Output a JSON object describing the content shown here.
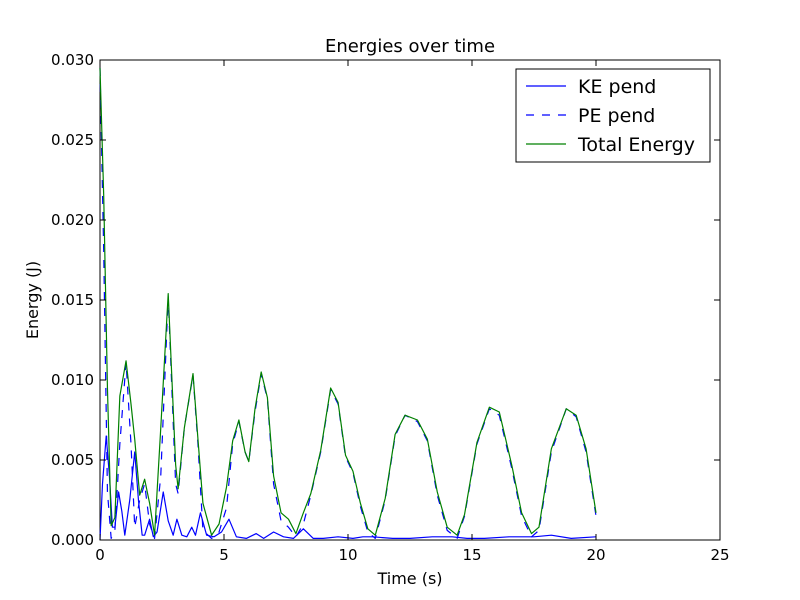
{
  "chart_data": {
    "type": "line",
    "title": "Energies over time",
    "xlabel": "Time (s)",
    "ylabel": "Energy (J)",
    "xlim": [
      0,
      25
    ],
    "ylim": [
      0,
      0.03
    ],
    "x_ticks": [
      0,
      5,
      10,
      15,
      20,
      25
    ],
    "x_tick_labels": [
      "0",
      "5",
      "10",
      "15",
      "20",
      "25"
    ],
    "y_ticks": [
      0,
      0.005,
      0.01,
      0.015,
      0.02,
      0.025,
      0.03
    ],
    "y_tick_labels": [
      "0.000",
      "0.005",
      "0.010",
      "0.015",
      "0.020",
      "0.025",
      "0.030"
    ],
    "grid": false,
    "legend": "top-right",
    "series": [
      {
        "name": "KE pend",
        "color": "#0000ff",
        "style": "solid",
        "points": [
          [
            0,
            0
          ],
          [
            0.1,
            0.0035
          ],
          [
            0.25,
            0.0065
          ],
          [
            0.38,
            0.004
          ],
          [
            0.5,
            0.0008
          ],
          [
            0.6,
            0.0008
          ],
          [
            0.75,
            0.003
          ],
          [
            0.88,
            0.0018
          ],
          [
            1.0,
            0.0003
          ],
          [
            1.2,
            0.0025
          ],
          [
            1.4,
            0.0055
          ],
          [
            1.55,
            0.0025
          ],
          [
            1.7,
            0.0003
          ],
          [
            1.8,
            0.0003
          ],
          [
            2.0,
            0.0013
          ],
          [
            2.15,
            0.0002
          ],
          [
            2.3,
            0.0005
          ],
          [
            2.55,
            0.003
          ],
          [
            2.75,
            0.0012
          ],
          [
            2.95,
            0.0003
          ],
          [
            3.1,
            0.0013
          ],
          [
            3.3,
            0.0003
          ],
          [
            3.5,
            0.0002
          ],
          [
            3.7,
            0.0008
          ],
          [
            3.85,
            0.0003
          ],
          [
            4.05,
            0.0017
          ],
          [
            4.3,
            0.0003
          ],
          [
            4.6,
            0.0002
          ],
          [
            4.9,
            0.0005
          ],
          [
            5.2,
            0.0013
          ],
          [
            5.5,
            0.0002
          ],
          [
            5.9,
            0.0001
          ],
          [
            6.3,
            0.0004
          ],
          [
            6.6,
            0.0001
          ],
          [
            7.0,
            0.0005
          ],
          [
            7.4,
            0.0002
          ],
          [
            7.8,
            0.0001
          ],
          [
            8.2,
            0.0007
          ],
          [
            8.6,
            0.0001
          ],
          [
            9.0,
            0.0001
          ],
          [
            9.6,
            0.0002
          ],
          [
            10.2,
            0.0001
          ],
          [
            10.6,
            0.0002
          ],
          [
            11.0,
            0.0002
          ],
          [
            11.8,
            0.0001
          ],
          [
            12.5,
            0.0001
          ],
          [
            13.4,
            0.0002
          ],
          [
            14.2,
            0.0002
          ],
          [
            14.8,
            0.0001
          ],
          [
            15.5,
            0.0001
          ],
          [
            16.5,
            0.0002
          ],
          [
            17.5,
            0.0002
          ],
          [
            18.2,
            0.0003
          ],
          [
            19.0,
            0.0001
          ],
          [
            20,
            0.0002
          ]
        ]
      },
      {
        "name": "PE pend",
        "color": "#0000ff",
        "style": "dashed",
        "points": [
          [
            0,
            0.0295
          ],
          [
            0.15,
            0.018
          ],
          [
            0.3,
            0.003
          ],
          [
            0.45,
            0.0001
          ],
          [
            0.6,
            0.0006
          ],
          [
            0.8,
            0.006
          ],
          [
            1.05,
            0.0111
          ],
          [
            1.25,
            0.006
          ],
          [
            1.4,
            0.0008
          ],
          [
            1.6,
            0.0025
          ],
          [
            1.8,
            0.0035
          ],
          [
            2.0,
            0.001
          ],
          [
            2.2,
            0.0001
          ],
          [
            2.45,
            0.004
          ],
          [
            2.75,
            0.0152
          ],
          [
            3.05,
            0.0035
          ],
          [
            3.15,
            0.0029
          ],
          [
            3.4,
            0.007
          ],
          [
            3.75,
            0.0103
          ],
          [
            3.95,
            0.006
          ],
          [
            4.15,
            0.0006
          ],
          [
            4.5,
            0.0001
          ],
          [
            4.8,
            0.0005
          ],
          [
            5.1,
            0.002
          ],
          [
            5.35,
            0.006
          ],
          [
            5.6,
            0.0074
          ],
          [
            5.85,
            0.0055
          ],
          [
            6.0,
            0.0049
          ],
          [
            6.25,
            0.008
          ],
          [
            6.5,
            0.0104
          ],
          [
            6.75,
            0.0088
          ],
          [
            7.0,
            0.0035
          ],
          [
            7.3,
            0.0012
          ],
          [
            7.6,
            0.0008
          ],
          [
            7.9,
            0.0002
          ],
          [
            8.2,
            0.001
          ],
          [
            8.5,
            0.0028
          ],
          [
            8.9,
            0.0055
          ],
          [
            9.3,
            0.0094
          ],
          [
            9.6,
            0.0085
          ],
          [
            9.9,
            0.0052
          ],
          [
            10.2,
            0.0042
          ],
          [
            10.5,
            0.0021
          ],
          [
            10.8,
            0.0005
          ],
          [
            11.1,
            0.0001
          ],
          [
            11.5,
            0.0025
          ],
          [
            11.9,
            0.0065
          ],
          [
            12.3,
            0.0078
          ],
          [
            12.8,
            0.0074
          ],
          [
            13.2,
            0.0062
          ],
          [
            13.6,
            0.0028
          ],
          [
            14.0,
            0.0006
          ],
          [
            14.4,
            0.0001
          ],
          [
            14.7,
            0.0015
          ],
          [
            15.2,
            0.006
          ],
          [
            15.7,
            0.0082
          ],
          [
            16.1,
            0.0078
          ],
          [
            16.6,
            0.0045
          ],
          [
            17.0,
            0.0015
          ],
          [
            17.4,
            0.0002
          ],
          [
            17.7,
            0.0006
          ],
          [
            18.2,
            0.0055
          ],
          [
            18.8,
            0.0082
          ],
          [
            19.2,
            0.0077
          ],
          [
            19.6,
            0.0055
          ],
          [
            20,
            0.0015
          ]
        ]
      },
      {
        "name": "Total Energy",
        "color": "#008000",
        "style": "solid",
        "points": [
          [
            0,
            0.0295
          ],
          [
            0.15,
            0.0215
          ],
          [
            0.3,
            0.0095
          ],
          [
            0.45,
            0.0009
          ],
          [
            0.6,
            0.0014
          ],
          [
            0.8,
            0.009
          ],
          [
            1.05,
            0.0112
          ],
          [
            1.25,
            0.0085
          ],
          [
            1.4,
            0.0063
          ],
          [
            1.6,
            0.0028
          ],
          [
            1.8,
            0.0038
          ],
          [
            2.0,
            0.0023
          ],
          [
            2.2,
            0.0003
          ],
          [
            2.45,
            0.007
          ],
          [
            2.75,
            0.0154
          ],
          [
            3.05,
            0.0047
          ],
          [
            3.15,
            0.0032
          ],
          [
            3.4,
            0.007
          ],
          [
            3.75,
            0.0104
          ],
          [
            3.95,
            0.0063
          ],
          [
            4.15,
            0.0023
          ],
          [
            4.5,
            0.0003
          ],
          [
            4.8,
            0.001
          ],
          [
            5.1,
            0.0033
          ],
          [
            5.35,
            0.0062
          ],
          [
            5.6,
            0.0075
          ],
          [
            5.85,
            0.0055
          ],
          [
            6.0,
            0.0049
          ],
          [
            6.25,
            0.0082
          ],
          [
            6.5,
            0.0105
          ],
          [
            6.75,
            0.0089
          ],
          [
            7.0,
            0.004
          ],
          [
            7.3,
            0.0017
          ],
          [
            7.6,
            0.0013
          ],
          [
            7.9,
            0.0004
          ],
          [
            8.2,
            0.0017
          ],
          [
            8.5,
            0.0029
          ],
          [
            8.9,
            0.0056
          ],
          [
            9.3,
            0.0095
          ],
          [
            9.6,
            0.0086
          ],
          [
            9.9,
            0.0053
          ],
          [
            10.2,
            0.0043
          ],
          [
            10.5,
            0.0023
          ],
          [
            10.8,
            0.0007
          ],
          [
            11.1,
            0.0003
          ],
          [
            11.5,
            0.0026
          ],
          [
            11.9,
            0.0066
          ],
          [
            12.3,
            0.0078
          ],
          [
            12.8,
            0.0075
          ],
          [
            13.2,
            0.0063
          ],
          [
            13.6,
            0.003
          ],
          [
            14.0,
            0.0008
          ],
          [
            14.4,
            0.0003
          ],
          [
            14.7,
            0.0016
          ],
          [
            15.2,
            0.0061
          ],
          [
            15.7,
            0.0083
          ],
          [
            16.1,
            0.008
          ],
          [
            16.6,
            0.0047
          ],
          [
            17.0,
            0.0017
          ],
          [
            17.4,
            0.0004
          ],
          [
            17.7,
            0.0008
          ],
          [
            18.2,
            0.0057
          ],
          [
            18.8,
            0.0082
          ],
          [
            19.2,
            0.0078
          ],
          [
            19.6,
            0.0057
          ],
          [
            20,
            0.0017
          ]
        ]
      }
    ]
  }
}
